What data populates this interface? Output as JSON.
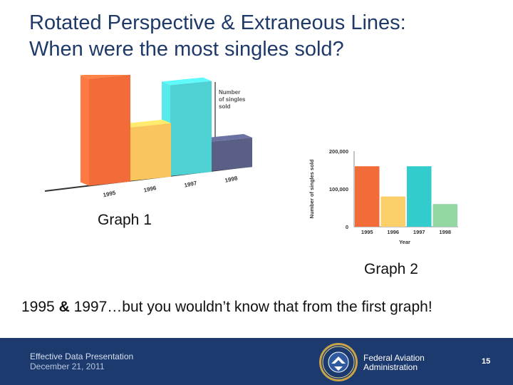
{
  "slide": {
    "title_line1": "Rotated Perspective & Extraneous Lines:",
    "title_line2": "When were the most singles sold?",
    "graph1_label": "Graph 1",
    "graph2_label": "Graph 2",
    "conclusion_part1": "1995 ",
    "conclusion_amp": "&",
    "conclusion_part2": " 1997…but you wouldn’t know that from the first graph!"
  },
  "footer": {
    "presentation": "Effective Data Presentation",
    "date": "December 21, 2011",
    "agency_line1": "Federal Aviation",
    "agency_line2": "Administration",
    "page_number": "15",
    "seal_icon": "faa-seal-icon"
  },
  "chart_data": [
    {
      "id": "graph1",
      "type": "bar",
      "style": "3d-rotated",
      "categories": [
        "1995",
        "1996",
        "1997",
        "1998"
      ],
      "values": [
        200000,
        100000,
        170000,
        55000
      ],
      "ylabel_lines": [
        "Number",
        "of singles",
        "sold"
      ],
      "colors": [
        "#f26c3a",
        "#f9c55c",
        "#4fd0d2",
        "#5a5f86"
      ],
      "grid": false,
      "value_ticks": false
    },
    {
      "id": "graph2",
      "type": "bar",
      "categories": [
        "1995",
        "1996",
        "1997",
        "1998"
      ],
      "values": [
        160000,
        80000,
        160000,
        60000
      ],
      "xlabel": "Year",
      "ylabel": "Number of singles sold",
      "yticks": [
        "0",
        "100,000",
        "200,000"
      ],
      "ylim": [
        0,
        200000
      ],
      "colors": [
        "#f26c3a",
        "#fbd06b",
        "#33cccc",
        "#93d7a2"
      ],
      "grid": false
    }
  ]
}
